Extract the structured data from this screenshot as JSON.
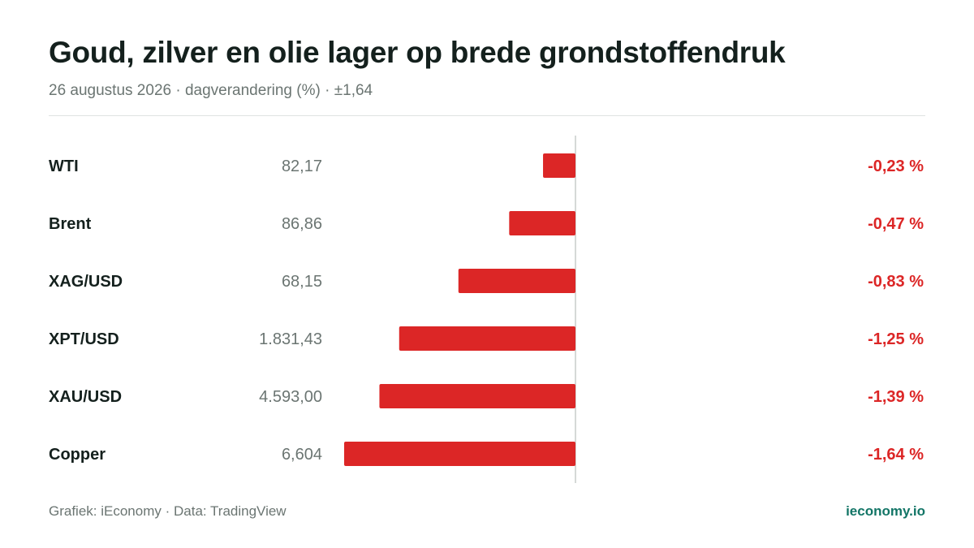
{
  "header": {
    "title": "Goud, zilver en olie lager op brede grondstoffendruk",
    "subtitle": "26 augustus 2026 · dagverandering (%) · ±1,64"
  },
  "footer": {
    "source": "Grafiek: iEconomy · Data: TradingView",
    "brand": "ieconomy.io"
  },
  "colors": {
    "negative": "#dc2626",
    "brand": "#127566",
    "label": "#14201d",
    "muted": "#6b7572",
    "axis": "#d5d9d7"
  },
  "chart_data": {
    "type": "bar",
    "orientation": "horizontal",
    "categories": [
      "WTI",
      "Brent",
      "XAG/USD",
      "XPT/USD",
      "XAU/USD",
      "Copper"
    ],
    "prices": [
      "82,17",
      "86,86",
      "68,15",
      "1.831,43",
      "4.593,00",
      "6,604"
    ],
    "values": [
      -0.23,
      -0.47,
      -0.83,
      -1.25,
      -1.39,
      -1.64
    ],
    "value_labels": [
      "-0,23 %",
      "-0,47 %",
      "-0,83 %",
      "-1,25 %",
      "-1,39 %",
      "-1,64 %"
    ],
    "xlim": [
      -1.64,
      1.64
    ],
    "grid": false,
    "legend": "none"
  }
}
